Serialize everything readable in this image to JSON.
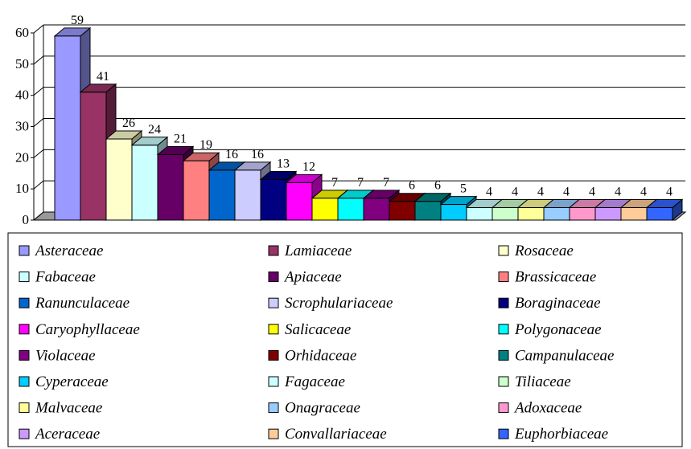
{
  "chart_data": {
    "type": "bar3d",
    "categories": [
      "Asteraceae",
      "Lamiaceae",
      "Rosaceae",
      "Fabaceae",
      "Apiaceae",
      "Brassicaceae",
      "Ranunculaceae",
      "Scrophulariaceae",
      "Boraginaceae",
      "Caryophyllaceae",
      "Salicaceae",
      "Polygonaceae",
      "Violaceae",
      "Orhidaceae",
      "Campanulaceae",
      "Cyperaceae",
      "Fagaceae",
      "Tiliaceae",
      "Malvaceae",
      "Onagraceae",
      "Adoxaceae",
      "Aceraceae",
      "Convallariaceae",
      "Euphorbiaceae"
    ],
    "values": [
      59,
      41,
      26,
      24,
      21,
      19,
      16,
      16,
      13,
      12,
      7,
      7,
      7,
      6,
      6,
      5,
      4,
      4,
      4,
      4,
      4,
      4,
      4,
      4
    ],
    "colors": [
      "#9999ff",
      "#993366",
      "#ffffcc",
      "#ccffff",
      "#660066",
      "#ff8080",
      "#0066cc",
      "#ccccff",
      "#000080",
      "#ff00ff",
      "#ffff00",
      "#00ffff",
      "#800080",
      "#800000",
      "#008080",
      "#00ccff",
      "#ccffff",
      "#ccffcc",
      "#ffff99",
      "#99ccff",
      "#ff99cc",
      "#cc99ff",
      "#ffcc99",
      "#3366ff"
    ],
    "ylim": [
      0,
      60
    ],
    "yticks": [
      0,
      10,
      20,
      30,
      40,
      50,
      60
    ],
    "grid": true,
    "legend": "bottom"
  }
}
